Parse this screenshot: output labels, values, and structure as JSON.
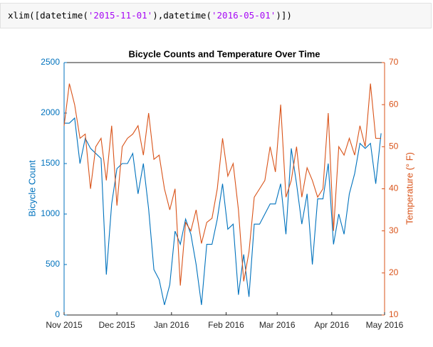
{
  "code": {
    "tokens": [
      {
        "text": "xlim([datetime(",
        "kind": "plain"
      },
      {
        "text": "'2015-11-01'",
        "kind": "string"
      },
      {
        "text": "),datetime(",
        "kind": "plain"
      },
      {
        "text": "'2016-05-01'",
        "kind": "string"
      },
      {
        "text": ")])",
        "kind": "plain"
      }
    ]
  },
  "chart_data": {
    "type": "line",
    "title": "Bicycle Counts and Temperature Over Time",
    "ylabel": "Bicycle Count",
    "y2label": "Temperature (° F)",
    "x": [
      "2015-11-01",
      "2015-11-04",
      "2015-11-07",
      "2015-11-10",
      "2015-11-13",
      "2015-11-16",
      "2015-11-19",
      "2015-11-22",
      "2015-11-25",
      "2015-11-28",
      "2015-12-01",
      "2015-12-04",
      "2015-12-07",
      "2015-12-10",
      "2015-12-13",
      "2015-12-16",
      "2015-12-19",
      "2015-12-22",
      "2015-12-25",
      "2015-12-28",
      "2015-12-31",
      "2016-01-03",
      "2016-01-06",
      "2016-01-09",
      "2016-01-12",
      "2016-01-15",
      "2016-01-18",
      "2016-01-21",
      "2016-01-24",
      "2016-01-27",
      "2016-01-30",
      "2016-02-02",
      "2016-02-05",
      "2016-02-08",
      "2016-02-11",
      "2016-02-14",
      "2016-02-17",
      "2016-02-20",
      "2016-02-23",
      "2016-02-26",
      "2016-02-29",
      "2016-03-03",
      "2016-03-06",
      "2016-03-09",
      "2016-03-12",
      "2016-03-15",
      "2016-03-18",
      "2016-03-21",
      "2016-03-24",
      "2016-03-27",
      "2016-03-30",
      "2016-04-02",
      "2016-04-05",
      "2016-04-08",
      "2016-04-11",
      "2016-04-14",
      "2016-04-17",
      "2016-04-20",
      "2016-04-23",
      "2016-04-26",
      "2016-04-29"
    ],
    "series": [
      {
        "name": "Bicycle Count",
        "color": "#0072BD",
        "axis": "y",
        "values": [
          1900,
          1900,
          1950,
          1500,
          1750,
          1650,
          1600,
          1550,
          400,
          1100,
          1450,
          1500,
          1500,
          1600,
          1200,
          1500,
          1050,
          450,
          350,
          100,
          300,
          830,
          700,
          950,
          800,
          500,
          100,
          700,
          700,
          950,
          1300,
          850,
          900,
          200,
          600,
          180,
          900,
          900,
          1000,
          1100,
          1100,
          1300,
          800,
          1650,
          1300,
          900,
          1200,
          500,
          1150,
          1150,
          1500,
          700,
          1000,
          800,
          1200,
          1400,
          1700,
          1650,
          1700,
          1300,
          1800
        ]
      },
      {
        "name": "Temperature (° F)",
        "color": "#D95319",
        "axis": "y2",
        "values": [
          55,
          65,
          60,
          52,
          53,
          40,
          50,
          52,
          42,
          55,
          36,
          50,
          52,
          53,
          55,
          48,
          58,
          47,
          48,
          40,
          35,
          40,
          17,
          32,
          30,
          35,
          27,
          32,
          33,
          40,
          52,
          43,
          46,
          35,
          18,
          25,
          38,
          40,
          42,
          50,
          44,
          60,
          38,
          42,
          50,
          38,
          45,
          42,
          38,
          40,
          58,
          30,
          50,
          48,
          52,
          48,
          55,
          50,
          65,
          52,
          52
        ]
      }
    ],
    "xlim": [
      "2015-11-01",
      "2016-05-01"
    ],
    "xticks": [
      {
        "value": "2015-11-01",
        "label": "Nov 2015"
      },
      {
        "value": "2015-12-01",
        "label": "Dec 2015"
      },
      {
        "value": "2016-01-01",
        "label": "Jan 2016"
      },
      {
        "value": "2016-02-01",
        "label": "Feb 2016"
      },
      {
        "value": "2016-03-01",
        "label": "Mar 2016"
      },
      {
        "value": "2016-04-01",
        "label": "Apr 2016"
      },
      {
        "value": "2016-05-01",
        "label": "May 2016"
      }
    ],
    "ylim": [
      0,
      2500
    ],
    "yticks": [
      0,
      500,
      1000,
      1500,
      2000,
      2500
    ],
    "y2lim": [
      10,
      70
    ],
    "y2ticks": [
      10,
      20,
      30,
      40,
      50,
      60,
      70
    ],
    "grid": false
  }
}
